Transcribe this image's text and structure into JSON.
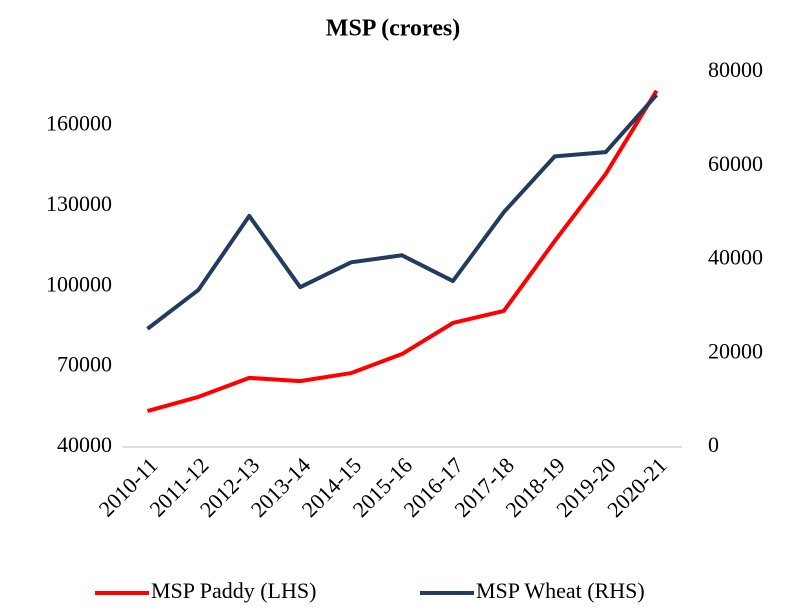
{
  "chart_data": {
    "type": "line",
    "title": "MSP (crores)",
    "categories": [
      "2010-11",
      "2011-12",
      "2012-13",
      "2013-14",
      "2014-15",
      "2015-16",
      "2016-17",
      "2017-18",
      "2018-19",
      "2019-20",
      "2020-21"
    ],
    "series": [
      {
        "name": "MSP Paddy (LHS)",
        "color": "#ff0000",
        "values": [
          53400,
          58700,
          65800,
          64600,
          67600,
          74700,
          86300,
          90800,
          116900,
          141900,
          173000
        ]
      },
      {
        "name": "MSP Wheat (RHS)",
        "color": "#243b5e",
        "axis": "y2",
        "values": [
          25200,
          33500,
          49300,
          34100,
          39400,
          40900,
          35400,
          50100,
          62000,
          62900,
          75100
        ]
      }
    ],
    "ylim": [
      40000,
      180000
    ],
    "yticks": [
      40000,
      70000,
      100000,
      130000,
      160000
    ],
    "y2lim": [
      0,
      80000
    ],
    "y2ticks": [
      0,
      20000,
      40000,
      60000,
      80000
    ],
    "grid": false,
    "legend": "bottom"
  }
}
